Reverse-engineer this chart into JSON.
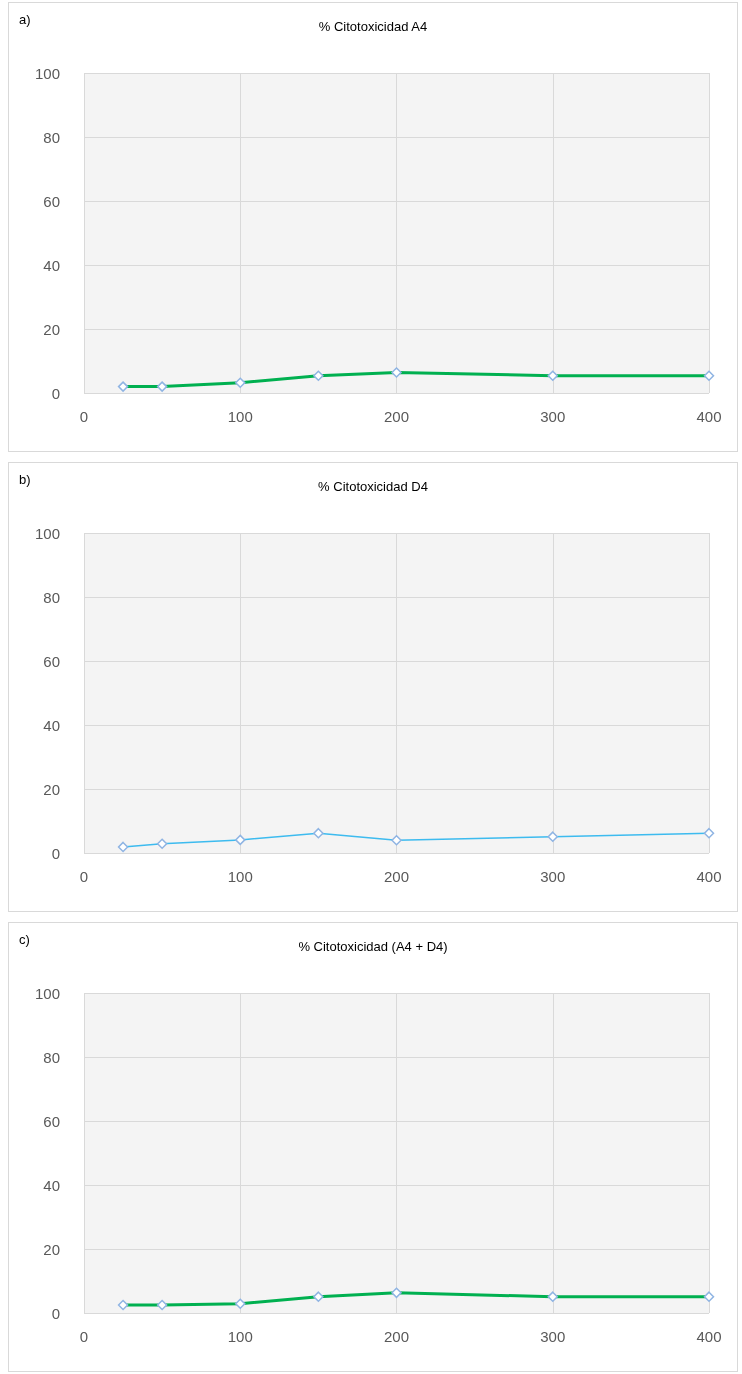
{
  "chart_data": [
    {
      "type": "line",
      "title": "% Citotoxicidad A4",
      "annotations": [
        "a)"
      ],
      "x": [
        25,
        50,
        100,
        150,
        200,
        300,
        400
      ],
      "series": [
        {
          "color": "#00b050",
          "values": [
            2,
            2,
            3.2,
            5.4,
            6.4,
            5.4,
            5.4
          ]
        }
      ],
      "xlim": [
        0,
        400
      ],
      "xticks": [
        0,
        100,
        200,
        300,
        400
      ],
      "ylim": [
        0,
        100
      ],
      "yticks": [
        0,
        20,
        40,
        60,
        80,
        100
      ],
      "grid": true,
      "marker": "diamond",
      "line_style": "solid"
    },
    {
      "type": "line",
      "title": "% Citotoxicidad D4",
      "annotations": [
        "b)"
      ],
      "x": [
        25,
        50,
        100,
        150,
        200,
        300,
        400
      ],
      "series": [
        {
          "color": "#3dbbef",
          "values": [
            1.9,
            2.9,
            4.1,
            6.2,
            4,
            5.1,
            6.2
          ]
        }
      ],
      "xlim": [
        0,
        400
      ],
      "xticks": [
        0,
        100,
        200,
        300,
        400
      ],
      "ylim": [
        0,
        100
      ],
      "yticks": [
        0,
        20,
        40,
        60,
        80,
        100
      ],
      "grid": true,
      "marker": "diamond",
      "line_style": "solid"
    },
    {
      "type": "line",
      "title": "% Citotoxicidad (A4 + D4)",
      "annotations": [
        "c)"
      ],
      "x": [
        25,
        50,
        100,
        150,
        200,
        300,
        400
      ],
      "series": [
        {
          "color": "#00b050",
          "values": [
            2.5,
            2.5,
            2.9,
            5.1,
            6.3,
            5.1,
            5.1
          ]
        }
      ],
      "xlim": [
        0,
        400
      ],
      "xticks": [
        0,
        100,
        200,
        300,
        400
      ],
      "ylim": [
        0,
        100
      ],
      "yticks": [
        0,
        20,
        40,
        60,
        80,
        100
      ],
      "grid": true,
      "marker": "diamond",
      "line_style": "solid"
    }
  ]
}
